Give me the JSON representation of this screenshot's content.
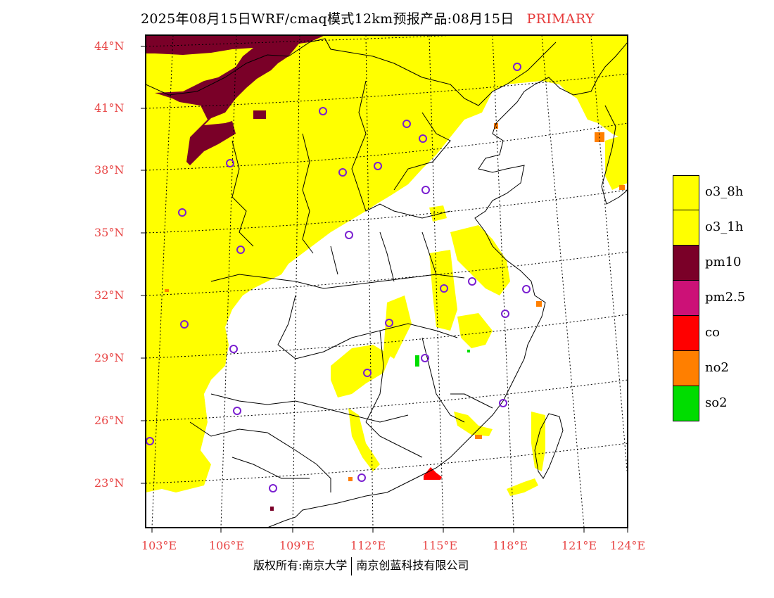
{
  "header": {
    "title": "2025年08月15日WRF/cmaq模式12km预报产品:08月15日",
    "tag": "PRIMARY"
  },
  "lat_labels": [
    "44°N",
    "41°N",
    "38°N",
    "35°N",
    "32°N",
    "29°N",
    "26°N",
    "23°N"
  ],
  "lon_labels": [
    "103°E",
    "106°E",
    "109°E",
    "112°E",
    "115°E",
    "118°E",
    "121°E",
    "124°E"
  ],
  "legend": [
    {
      "label": "o3_8h",
      "color": "#ffff00"
    },
    {
      "label": "o3_1h",
      "color": "#ffff00"
    },
    {
      "label": "pm10",
      "color": "#7a0028"
    },
    {
      "label": "pm2.5",
      "color": "#cc1177"
    },
    {
      "label": "co",
      "color": "#ff0000"
    },
    {
      "label": "no2",
      "color": "#ff7f00"
    },
    {
      "label": "so2",
      "color": "#00dd00"
    }
  ],
  "footer": {
    "left": "版权所有:南京大学",
    "right": "南京创蓝科技有限公司"
  },
  "colors": {
    "o3": "#ffff00",
    "pm10": "#7a0028",
    "no2": "#ff7f00",
    "co": "#ff0000",
    "so2": "#00dd00",
    "station": "#7a1fd0",
    "axis_label": "#e84545"
  }
}
